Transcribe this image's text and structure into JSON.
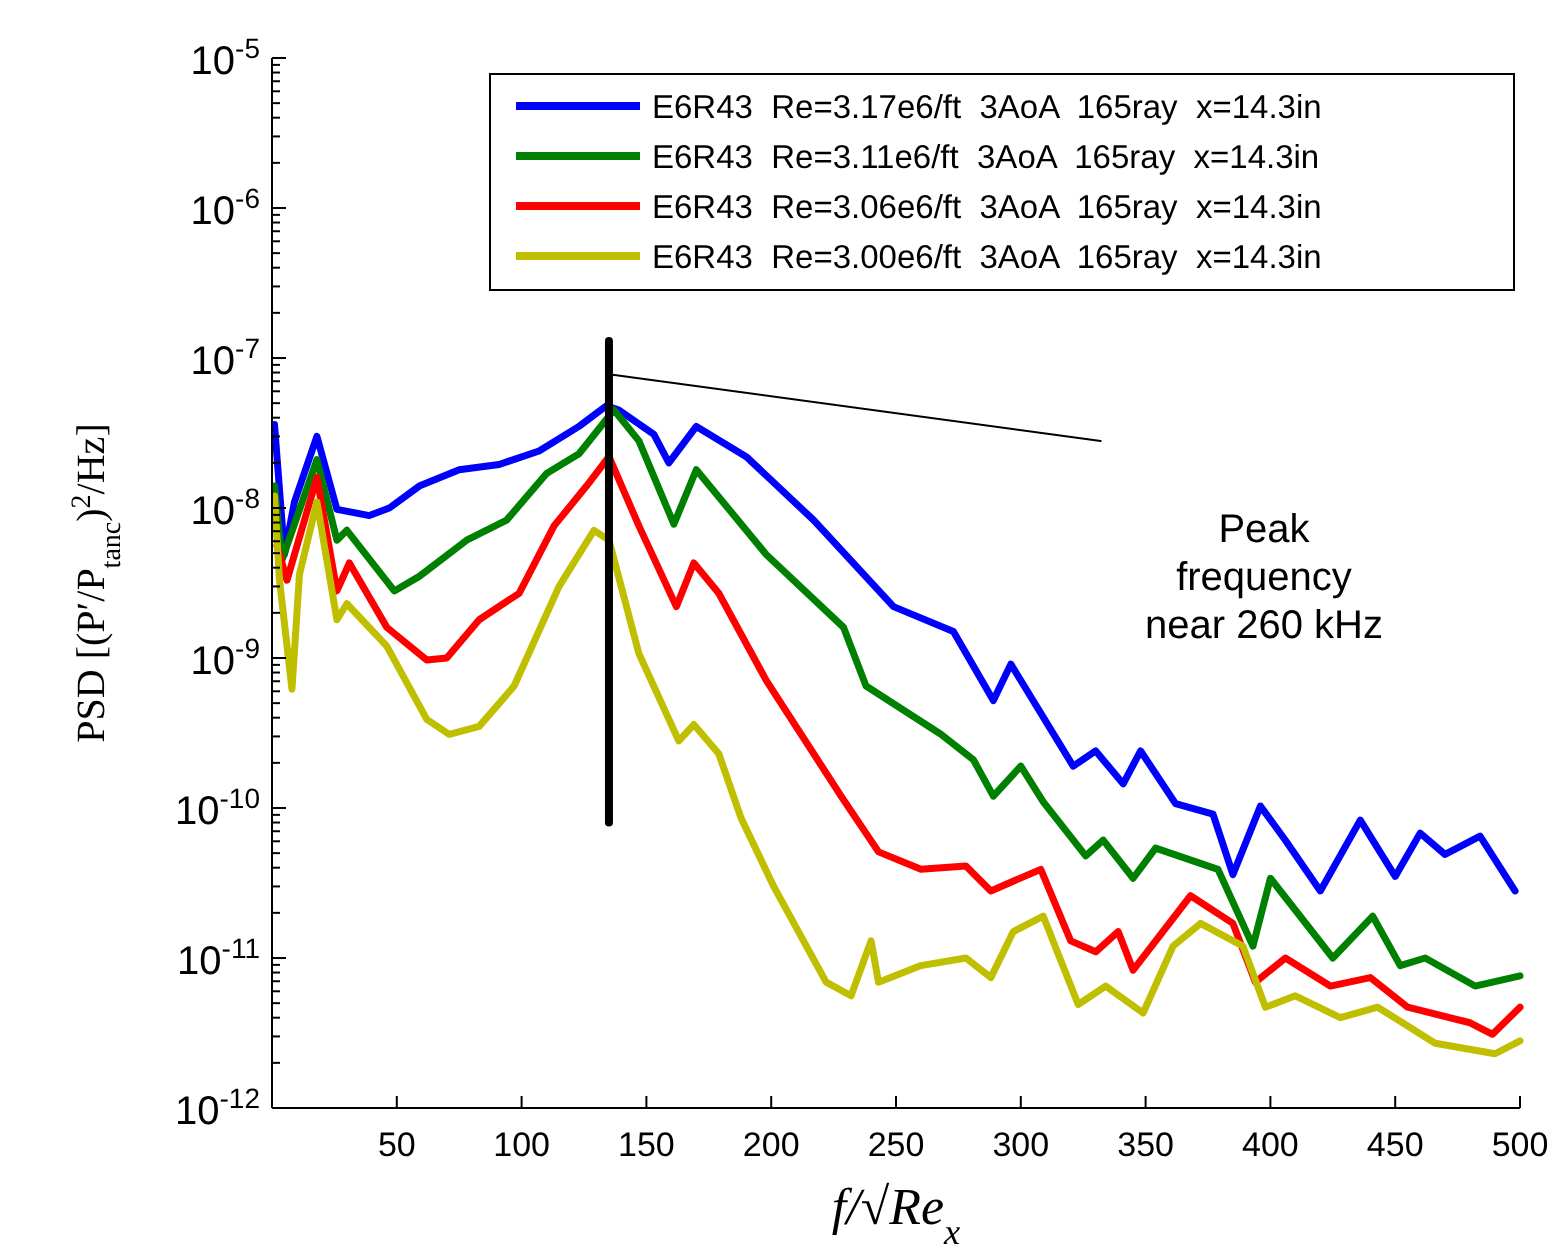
{
  "chart_data": {
    "type": "line",
    "xlabel": "f/√Re$_{x}$",
    "ylabel": "PSD [(P′/P$_{tanc}$)$^{2}$/Hz]",
    "log": "y",
    "grid": false,
    "legend": "top right",
    "marker": "none",
    "line_style": "solid",
    "xlim": [
      0,
      500
    ],
    "xticks": [
      50,
      100,
      150,
      200,
      250,
      300,
      350,
      400,
      450,
      500
    ],
    "ylim": [
      1e-12,
      1e-05
    ],
    "yticks": [
      {
        "value": 1e-12,
        "label": "10$^{-12}$"
      },
      {
        "value": 1e-11,
        "label": "10$^{-11}$"
      },
      {
        "value": 1e-10,
        "label": "10$^{-10}$"
      },
      {
        "value": 1e-09,
        "label": "10$^{-9}$"
      },
      {
        "value": 1e-08,
        "label": "10$^{-8}$"
      },
      {
        "value": 1e-07,
        "label": "10$^{-7}$"
      },
      {
        "value": 1e-06,
        "label": "10$^{-6}$"
      },
      {
        "value": 1e-05,
        "label": "10$^{-5}$"
      }
    ],
    "annotations": [
      "Peak\nfrequency\nnear 260 kHz"
    ],
    "series": [
      {
        "name": "E6R43  Re=3.17e6/ft  3AoA  165ray  x=14.3in",
        "color": "#0000ff",
        "x": [
          1,
          5,
          9,
          18,
          26,
          39,
          47,
          59,
          75,
          91,
          107,
          123,
          134,
          139,
          153,
          159,
          170,
          190,
          217,
          249,
          273,
          289,
          296,
          321,
          330,
          341,
          348,
          362,
          377,
          385,
          396,
          406,
          420,
          436,
          450,
          460,
          470,
          484,
          498
        ],
        "values": [
          3.6e-08,
          4.9e-09,
          1.1e-08,
          3e-08,
          9.8e-09,
          8.9e-09,
          1e-08,
          1.4e-08,
          1.8e-08,
          1.95e-08,
          2.4e-08,
          3.5e-08,
          4.8e-08,
          4.5e-08,
          3.1e-08,
          2e-08,
          3.5e-08,
          2.2e-08,
          8.3e-09,
          2.2e-09,
          1.5e-09,
          5.2e-10,
          9.1e-10,
          1.9e-10,
          2.4e-10,
          1.45e-10,
          2.4e-10,
          1.07e-10,
          9.1e-11,
          3.6e-11,
          1.03e-10,
          6.1e-11,
          2.8e-11,
          8.3e-11,
          3.5e-11,
          6.8e-11,
          4.9e-11,
          6.5e-11,
          2.8e-11
        ]
      },
      {
        "name": "E6R43  Re=3.11e6/ft  3AoA  165ray  x=14.3in",
        "color": "#008000",
        "x": [
          1,
          4,
          18,
          26,
          30,
          49,
          59,
          78,
          94,
          110,
          123,
          137,
          147,
          161,
          170,
          198,
          229,
          238,
          268,
          281,
          289,
          300,
          309,
          326,
          333,
          345,
          354,
          379,
          393,
          400,
          425,
          441,
          452,
          462,
          482,
          500
        ],
        "values": [
          1.4e-08,
          4.5e-09,
          2.1e-08,
          6.1e-09,
          7.1e-09,
          2.8e-09,
          3.5e-09,
          6.1e-09,
          8.3e-09,
          1.7e-08,
          2.3e-08,
          4.5e-08,
          2.8e-08,
          7.8e-09,
          1.8e-08,
          4.9e-09,
          1.6e-09,
          6.5e-10,
          3.1e-10,
          2.1e-10,
          1.2e-10,
          1.9e-10,
          1.1e-10,
          4.8e-11,
          6.1e-11,
          3.4e-11,
          5.4e-11,
          3.9e-11,
          1.2e-11,
          3.4e-11,
          1e-11,
          1.9e-11,
          8.9e-12,
          1e-11,
          6.5e-12,
          7.6e-12
        ]
      },
      {
        "name": "E6R43  Re=3.06e6/ft  3AoA  165ray  x=14.3in",
        "color": "#ff0000",
        "x": [
          2,
          6,
          18,
          26,
          31,
          46,
          62,
          70,
          83,
          99,
          113,
          126,
          135,
          147,
          162,
          169,
          179,
          198,
          228,
          243,
          260,
          278,
          288,
          308,
          320,
          330,
          339,
          345,
          368,
          385,
          394,
          406,
          424,
          440,
          455,
          480,
          489,
          500
        ],
        "values": [
          5.6e-09,
          3.3e-09,
          1.6e-08,
          2.8e-09,
          4.3e-09,
          1.6e-09,
          9.7e-10,
          1e-09,
          1.8e-09,
          2.7e-09,
          7.6e-09,
          1.4e-08,
          2.2e-08,
          7.6e-09,
          2.2e-09,
          4.3e-09,
          2.7e-09,
          7.1e-10,
          1.2e-10,
          5.1e-11,
          3.9e-11,
          4.1e-11,
          2.8e-11,
          3.9e-11,
          1.3e-11,
          1.1e-11,
          1.5e-11,
          8.3e-12,
          2.6e-11,
          1.7e-11,
          6.9e-12,
          1e-11,
          6.5e-12,
          7.4e-12,
          4.7e-12,
          3.7e-12,
          3.1e-12,
          4.7e-12
        ]
      },
      {
        "name": "E6R43  Re=3.00e6/ft  3AoA  165ray  x=14.3in",
        "color": "#bfbf00",
        "x": [
          1,
          3,
          8,
          11,
          18,
          26,
          30,
          46,
          62,
          71,
          83,
          97,
          115,
          129,
          135,
          147,
          163,
          169,
          179,
          188,
          201,
          222,
          232,
          240,
          243,
          260,
          278,
          288,
          297,
          309,
          323,
          334,
          349,
          361,
          372,
          389,
          398,
          410,
          428,
          443,
          466,
          490,
          500
        ],
        "values": [
          1.2e-08,
          3.3e-09,
          6.2e-10,
          3.6e-09,
          1.1e-08,
          1.8e-09,
          2.3e-09,
          1.2e-09,
          3.9e-10,
          3.1e-10,
          3.5e-10,
          6.5e-10,
          3e-09,
          7.1e-09,
          6.1e-09,
          1.07e-09,
          2.8e-10,
          3.6e-10,
          2.3e-10,
          8.5e-11,
          3e-11,
          6.9e-12,
          5.6e-12,
          1.3e-11,
          6.9e-12,
          8.9e-12,
          1e-11,
          7.4e-12,
          1.5e-11,
          1.9e-11,
          4.9e-12,
          6.5e-12,
          4.3e-12,
          1.2e-11,
          1.7e-11,
          1.2e-11,
          4.7e-12,
          5.6e-12,
          4e-12,
          4.7e-12,
          2.7e-12,
          2.3e-12,
          2.8e-12
        ]
      },
      {
        "color": "#000000",
        "x": [
          135,
          135
        ],
        "values": [
          1.3e-07,
          8e-11
        ]
      },
      {
        "color": "#000000",
        "x": [
          135,
          332
        ],
        "values": [
          7.8e-08,
          2.8e-08
        ]
      }
    ]
  }
}
